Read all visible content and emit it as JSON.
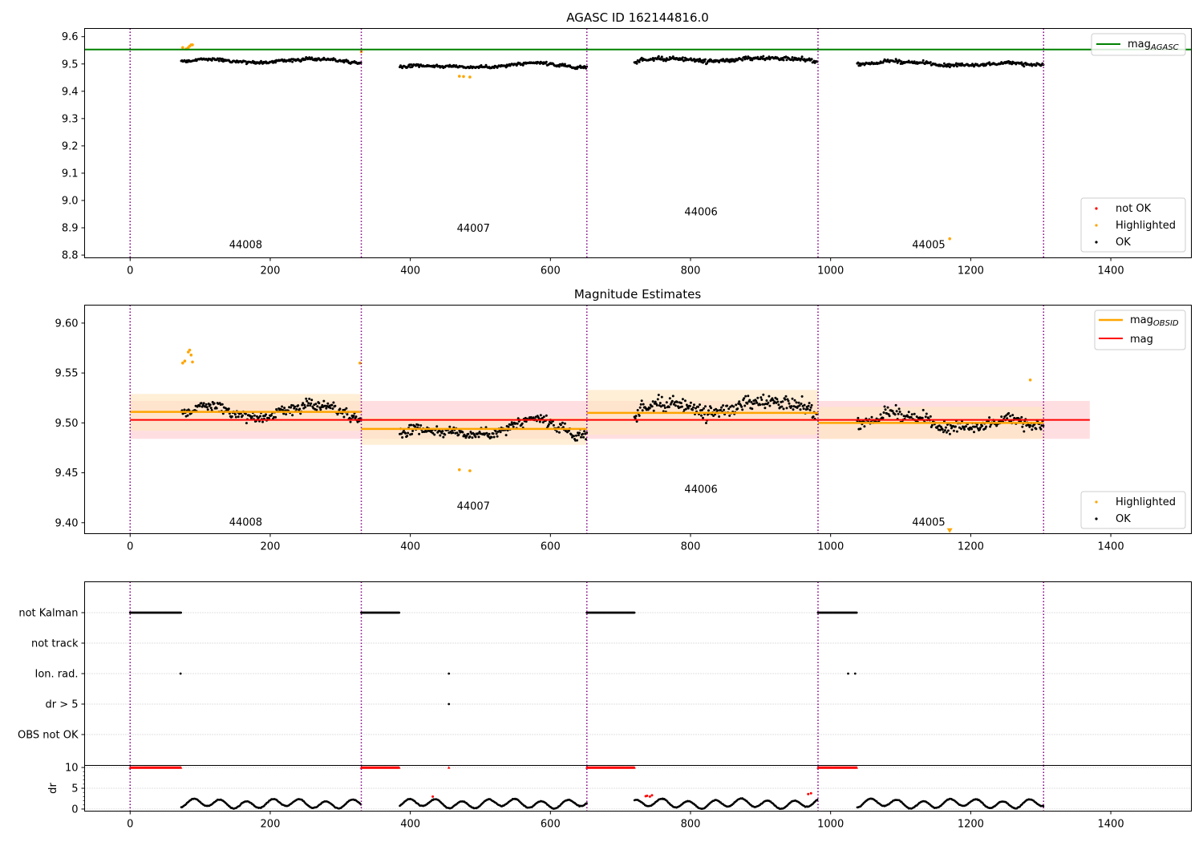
{
  "figure": {
    "obs_ids": [
      "44008",
      "44007",
      "44006",
      "44005"
    ],
    "colors": {
      "axes": "#000000",
      "ok": "#000000",
      "highlighted": "#ffa500",
      "not_ok": "#ff0000",
      "mag_agasc_line": "#008000",
      "mag_line": "#ff0000",
      "mag_obsid_line": "#ffa500",
      "boundary": "#800080",
      "band_red": "#ffc8cf",
      "band_orange": "#ffe6c2",
      "grid": "#b0b0b0"
    }
  },
  "chart_data": [
    {
      "id": "agasc_panel",
      "type": "scatter",
      "title": "AGASC ID 162144816.0",
      "xlim": [
        -65,
        1515
      ],
      "ylim": [
        8.79,
        9.63
      ],
      "xticks": [
        0,
        200,
        400,
        600,
        800,
        1000,
        1200,
        1400
      ],
      "yticks": [
        8.8,
        8.9,
        9.0,
        9.1,
        9.2,
        9.3,
        9.4,
        9.5,
        9.6
      ],
      "tick_labels_x": [
        "0",
        "200",
        "400",
        "600",
        "800",
        "1000",
        "1200",
        "1400"
      ],
      "tick_labels_y": [
        "8.8",
        "8.9",
        "9.0",
        "9.1",
        "9.2",
        "9.3",
        "9.4",
        "9.5",
        "9.6"
      ],
      "mag_agasc": 9.553,
      "boundaries": [
        0,
        330,
        652,
        982,
        1304
      ],
      "segments": [
        {
          "x": [
            73,
            330
          ],
          "level": 9.51,
          "amp": 0.014
        },
        {
          "x": [
            385,
            652
          ],
          "level": 9.49,
          "amp": 0.014
        },
        {
          "x": [
            720,
            982
          ],
          "level": 9.51,
          "amp": 0.02
        },
        {
          "x": [
            1038,
            1304
          ],
          "level": 9.5,
          "amp": 0.016
        }
      ],
      "highlighted_points": [
        [
          75,
          9.56
        ],
        [
          80,
          9.555
        ],
        [
          83,
          9.56
        ],
        [
          85,
          9.565
        ],
        [
          87,
          9.57
        ],
        [
          89,
          9.57
        ],
        [
          330,
          9.545
        ],
        [
          470,
          9.455
        ],
        [
          476,
          9.454
        ],
        [
          485,
          9.452
        ],
        [
          1170,
          8.86
        ]
      ],
      "obsid_labels": [
        {
          "text": "44008",
          "x": 165,
          "y": 8.825
        },
        {
          "text": "44007",
          "x": 490,
          "y": 8.885
        },
        {
          "text": "44006",
          "x": 815,
          "y": 8.945
        },
        {
          "text": "44005",
          "x": 1140,
          "y": 8.825
        }
      ],
      "legend_top": [
        {
          "name": "mag",
          "subscript": "AGASC"
        }
      ],
      "legend_bottom": [
        "not OK",
        "Highlighted",
        "OK"
      ]
    },
    {
      "id": "magnitude_panel",
      "type": "scatter",
      "title": "Magnitude Estimates",
      "xlim": [
        -65,
        1515
      ],
      "ylim": [
        9.389,
        9.618
      ],
      "xticks": [
        0,
        200,
        400,
        600,
        800,
        1000,
        1200,
        1400
      ],
      "yticks": [
        9.4,
        9.45,
        9.5,
        9.55,
        9.6
      ],
      "tick_labels_x": [
        "0",
        "200",
        "400",
        "600",
        "800",
        "1000",
        "1200",
        "1400"
      ],
      "tick_labels_y": [
        "9.40",
        "9.45",
        "9.50",
        "9.55",
        "9.60"
      ],
      "mag": 9.503,
      "mag_band": [
        9.484,
        9.522
      ],
      "mag_x_range": [
        0,
        1370
      ],
      "mag_obsid": [
        {
          "x": [
            0,
            330
          ],
          "mag": 9.511,
          "band": [
            9.492,
            9.529
          ]
        },
        {
          "x": [
            330,
            652
          ],
          "mag": 9.494,
          "band": [
            9.478,
            9.506
          ]
        },
        {
          "x": [
            652,
            982
          ],
          "mag": 9.51,
          "band": [
            9.488,
            9.533
          ]
        },
        {
          "x": [
            982,
            1304
          ],
          "mag": 9.5,
          "band": [
            9.484,
            9.516
          ]
        }
      ],
      "boundaries": [
        0,
        330,
        652,
        982,
        1304
      ],
      "segments": [
        {
          "x": [
            73,
            330
          ],
          "level": 9.51,
          "amp": 0.014
        },
        {
          "x": [
            385,
            652
          ],
          "level": 9.49,
          "amp": 0.014
        },
        {
          "x": [
            720,
            982
          ],
          "level": 9.51,
          "amp": 0.02
        },
        {
          "x": [
            1038,
            1304
          ],
          "level": 9.5,
          "amp": 0.016
        }
      ],
      "highlighted_points": [
        [
          75,
          9.56
        ],
        [
          78,
          9.562
        ],
        [
          83,
          9.571
        ],
        [
          85,
          9.573
        ],
        [
          87,
          9.568
        ],
        [
          89,
          9.561
        ],
        [
          328,
          9.56
        ],
        [
          470,
          9.453
        ],
        [
          485,
          9.452
        ],
        [
          1285,
          9.543
        ]
      ],
      "highlighted_marker": {
        "x": 1170,
        "y": 9.392
      },
      "obsid_labels": [
        {
          "text": "44008",
          "x": 165,
          "y": 9.397
        },
        {
          "text": "44007",
          "x": 490,
          "y": 9.413
        },
        {
          "text": "44006",
          "x": 815,
          "y": 9.43
        },
        {
          "text": "44005",
          "x": 1140,
          "y": 9.397
        }
      ],
      "legend_top": [
        {
          "name": "mag",
          "subscript": "OBSID"
        },
        {
          "name": "mag",
          "subscript": ""
        }
      ],
      "legend_bottom": [
        "Highlighted",
        "OK"
      ]
    },
    {
      "id": "flags_panel",
      "type": "scatter",
      "xlim": [
        -65,
        1515
      ],
      "rows": [
        "not Kalman",
        "not track",
        "Ion. rad.",
        "dr > 5",
        "OBS not OK"
      ],
      "not_kalman_ranges": [
        [
          0,
          73
        ],
        [
          330,
          385
        ],
        [
          652,
          720
        ],
        [
          982,
          1038
        ]
      ],
      "ion_rad_x": [
        72,
        455,
        1025,
        1035
      ],
      "dr5_x": [
        455
      ],
      "boundaries": [
        0,
        330,
        652,
        982,
        1304
      ]
    },
    {
      "id": "dr_panel",
      "type": "scatter",
      "ylabel": "dr",
      "xlim": [
        -65,
        1515
      ],
      "ylim": [
        -0.5,
        10.5
      ],
      "yticks": [
        0,
        5,
        10
      ],
      "tick_labels_y": [
        "0",
        "5",
        "10"
      ],
      "xticks": [
        0,
        200,
        400,
        600,
        800,
        1000,
        1200,
        1400
      ],
      "tick_labels_x": [
        "0",
        "200",
        "400",
        "600",
        "800",
        "1000",
        "1200",
        "1400"
      ],
      "capped_ranges": [
        [
          0,
          73
        ],
        [
          330,
          385
        ],
        [
          652,
          720
        ],
        [
          982,
          1038
        ]
      ],
      "capped_single_x": [
        455
      ],
      "capped_value": 10,
      "dr_segments": [
        [
          73,
          330
        ],
        [
          385,
          652
        ],
        [
          720,
          982
        ],
        [
          1038,
          1304
        ]
      ],
      "red_points": [
        [
          432,
          3.0
        ],
        [
          736,
          3.1
        ],
        [
          738,
          3.2
        ],
        [
          742,
          3.0
        ],
        [
          745,
          3.3
        ],
        [
          968,
          3.6
        ],
        [
          972,
          3.8
        ]
      ],
      "boundaries": [
        0,
        330,
        652,
        982,
        1304
      ]
    }
  ]
}
